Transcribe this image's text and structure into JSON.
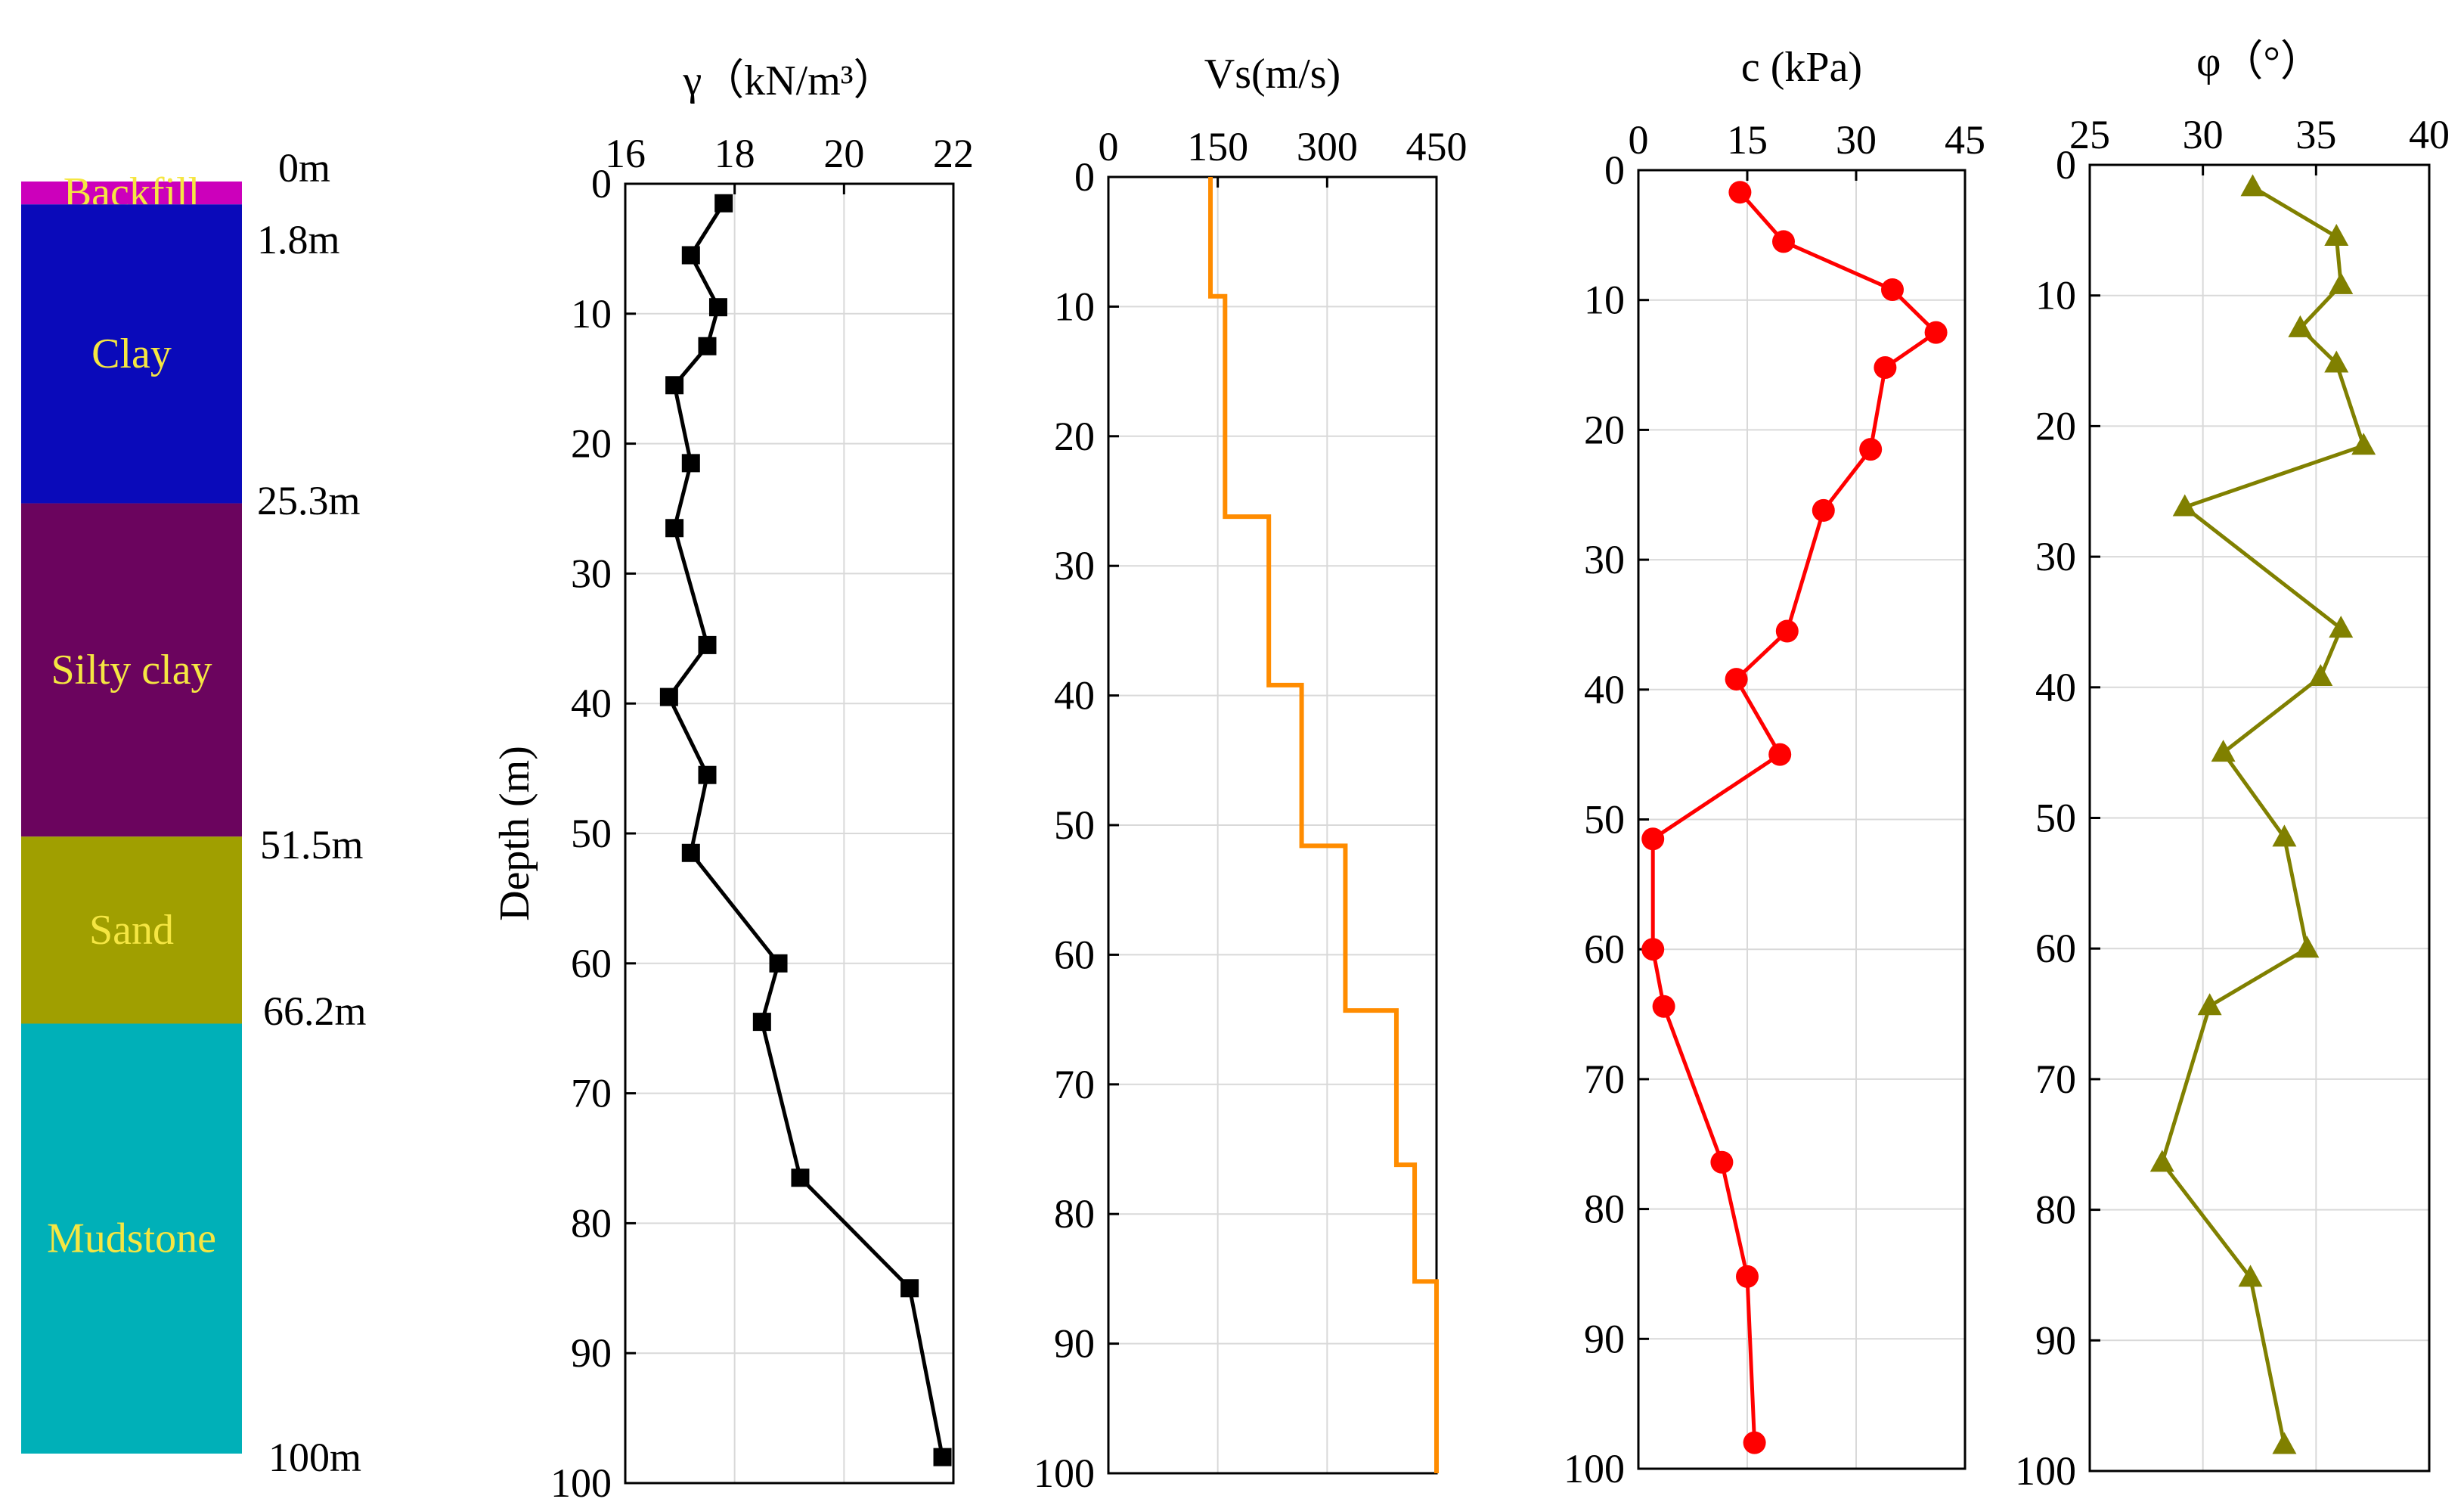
{
  "chart_data": [
    {
      "type": "table",
      "name": "strata-column",
      "layers": [
        {
          "name": "Backfill",
          "top": 0,
          "bottom": 1.8,
          "color": "#cc00bb",
          "text_color": "#f5e642"
        },
        {
          "name": "Clay",
          "top": 1.8,
          "bottom": 25.3,
          "color": "#0a0aba",
          "text_color": "#f5e642"
        },
        {
          "name": "Silty clay",
          "top": 25.3,
          "bottom": 51.5,
          "color": "#6b045e",
          "text_color": "#f5e642"
        },
        {
          "name": "Sand",
          "top": 51.5,
          "bottom": 66.2,
          "color": "#a09f00",
          "text_color": "#f5e642"
        },
        {
          "name": "Mudstone",
          "top": 66.2,
          "bottom": 100,
          "color": "#00b0b8",
          "text_color": "#f5e642"
        }
      ],
      "depth_labels": [
        "0m",
        "1.8m",
        "25.3m",
        "51.5m",
        "66.2m",
        "100m"
      ]
    },
    {
      "type": "line",
      "title": "γ（kN/m³）",
      "ylabel": "Depth (m)",
      "xlim": [
        16,
        22
      ],
      "xticks": [
        16,
        18,
        20,
        22
      ],
      "ylim": [
        0,
        100
      ],
      "yticks": [
        0,
        10,
        20,
        30,
        40,
        50,
        60,
        70,
        80,
        90,
        100
      ],
      "grid": true,
      "color": "#000000",
      "marker": "square",
      "series": [
        {
          "x": [
            17.8,
            17.2,
            17.7,
            17.5,
            16.9,
            17.2,
            16.9,
            17.5,
            16.8,
            17.5,
            17.2,
            18.8,
            18.5,
            19.2,
            21.2,
            21.8
          ],
          "y": [
            1.5,
            5.5,
            9.5,
            12.5,
            15.5,
            21.5,
            26.5,
            35.5,
            39.5,
            45.5,
            51.5,
            60,
            64.5,
            76.5,
            85,
            98
          ]
        }
      ]
    },
    {
      "type": "line",
      "title": "Vs(m/s)",
      "xlim": [
        0,
        450
      ],
      "xticks": [
        0,
        150,
        300,
        450
      ],
      "ylim": [
        0,
        100
      ],
      "yticks": [
        0,
        10,
        20,
        30,
        40,
        50,
        60,
        70,
        80,
        90,
        100
      ],
      "grid": true,
      "color": "#ff8c00",
      "marker": "none",
      "series": [
        {
          "x": [
            140,
            140,
            160,
            160,
            220,
            220,
            265,
            265,
            325,
            325,
            395,
            395,
            420,
            420,
            450,
            450
          ],
          "y": [
            0,
            9.2,
            9.2,
            26.2,
            26.2,
            39.2,
            39.2,
            51.6,
            51.6,
            64.3,
            64.3,
            76.2,
            76.2,
            85.2,
            85.2,
            100
          ]
        }
      ]
    },
    {
      "type": "line",
      "title": "c (kPa)",
      "xlim": [
        0,
        45
      ],
      "xticks": [
        0,
        15,
        30,
        45
      ],
      "ylim": [
        0,
        100
      ],
      "yticks": [
        0,
        10,
        20,
        30,
        40,
        50,
        60,
        70,
        80,
        90,
        100
      ],
      "grid": true,
      "color": "#ff0000",
      "marker": "circle",
      "series": [
        {
          "x": [
            14,
            20,
            35,
            41,
            34,
            32,
            25.5,
            20.5,
            13.5,
            19.5,
            2,
            2,
            3.5,
            11.5,
            15,
            16
          ],
          "y": [
            1.7,
            5.5,
            9.2,
            12.5,
            15.2,
            21.5,
            26.2,
            35.5,
            39.2,
            45,
            51.5,
            60,
            64.4,
            76.4,
            85.2,
            98
          ]
        }
      ]
    },
    {
      "type": "line",
      "title": "φ（°）",
      "xlim": [
        25,
        40
      ],
      "xticks": [
        25,
        30,
        35,
        40
      ],
      "ylim": [
        0,
        100
      ],
      "yticks": [
        0,
        10,
        20,
        30,
        40,
        50,
        60,
        70,
        80,
        90,
        100
      ],
      "grid": true,
      "color": "#808000",
      "marker": "triangle",
      "series": [
        {
          "x": [
            32.2,
            35.9,
            36.1,
            34.3,
            35.9,
            37.1,
            29.2,
            36.1,
            35.2,
            30.9,
            33.6,
            34.6,
            30.3,
            28.2,
            32.1,
            33.6
          ],
          "y": [
            1.7,
            5.5,
            9.2,
            12.5,
            15.2,
            21.5,
            26.2,
            35.5,
            39.2,
            45,
            51.5,
            60,
            64.4,
            76.4,
            85.2,
            98
          ]
        }
      ]
    }
  ]
}
